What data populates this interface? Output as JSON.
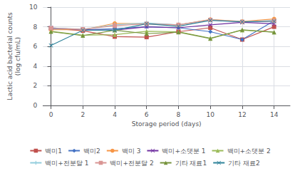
{
  "chart_data": {
    "type": "line",
    "xlabel": "Storage period (days)",
    "ylabel": "Lactic acid bacterial counts\n(log cfu/mL)",
    "x": [
      0,
      2,
      4,
      6,
      8,
      10,
      12,
      14
    ],
    "series": [
      {
        "name": "백미1",
        "color": "#c0504d",
        "marker": "square",
        "values": [
          7.85,
          7.6,
          7.0,
          6.95,
          7.5,
          7.9,
          6.7,
          8.0
        ]
      },
      {
        "name": "백미2",
        "color": "#4472c4",
        "marker": "diamond",
        "values": [
          7.8,
          7.7,
          7.8,
          8.0,
          7.9,
          7.5,
          6.7,
          8.6
        ]
      },
      {
        "name": "백미 3",
        "color": "#f79646",
        "marker": "circle",
        "values": [
          7.7,
          7.7,
          8.35,
          8.3,
          8.2,
          8.75,
          8.55,
          8.8
        ]
      },
      {
        "name": "백미+소댓분 1",
        "color": "#7030a0",
        "marker": "x",
        "values": [
          7.9,
          7.7,
          7.65,
          8.0,
          7.9,
          8.2,
          8.45,
          8.3
        ]
      },
      {
        "name": "백미+소댓분 2",
        "color": "#9bbb59",
        "marker": "triangle",
        "values": [
          7.55,
          7.15,
          7.2,
          7.55,
          7.5,
          6.85,
          7.65,
          7.45
        ]
      },
      {
        "name": "백미+전분달 1",
        "color": "#92cddc",
        "marker": "plus",
        "values": [
          7.9,
          7.75,
          8.2,
          8.4,
          8.2,
          8.7,
          8.5,
          8.65
        ]
      },
      {
        "name": "백미+전분달 2",
        "color": "#d99694",
        "marker": "square",
        "values": [
          7.85,
          7.75,
          8.1,
          8.3,
          8.2,
          8.7,
          8.5,
          8.6
        ]
      },
      {
        "name": "기타 재료1",
        "color": "#76933c",
        "marker": "triangle",
        "values": [
          7.5,
          7.1,
          7.65,
          7.3,
          7.45,
          6.8,
          7.7,
          7.45
        ]
      },
      {
        "name": "기타 재료2",
        "color": "#31849b",
        "marker": "x",
        "values": [
          6.1,
          7.65,
          7.65,
          8.3,
          8.05,
          8.65,
          8.5,
          8.55
        ]
      }
    ],
    "xlim": [
      -0.5,
      15
    ],
    "xticks": [
      0,
      2,
      4,
      6,
      8,
      10,
      12,
      14
    ],
    "ylim": [
      0.0,
      10.0
    ],
    "yticks": [
      0.0,
      2.0,
      4.0,
      6.0,
      8.0,
      10.0
    ],
    "grid": true,
    "legend": "bottom"
  }
}
